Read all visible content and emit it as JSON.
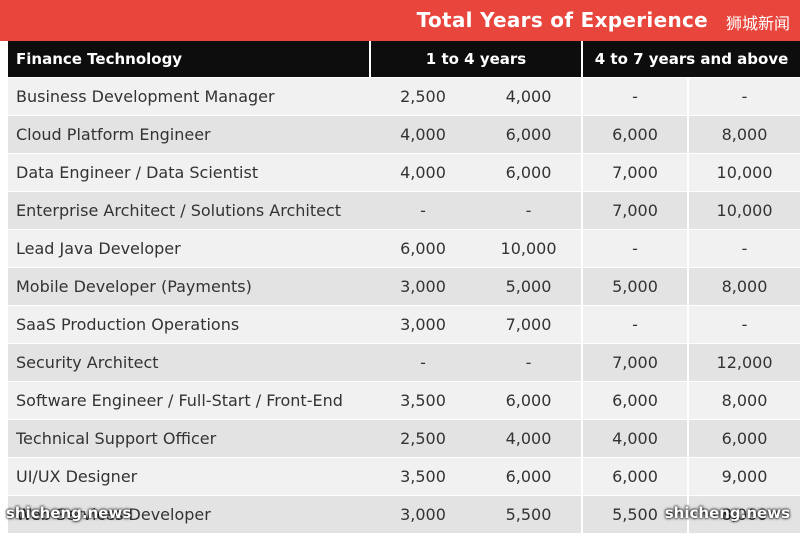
{
  "banner": {
    "title": "Total Years of Experience",
    "chinese_label": "狮城新闻"
  },
  "table": {
    "headers": [
      "Finance Technology",
      "1 to 4 years",
      "4 to 7 years and above"
    ],
    "rows": [
      [
        "Business Development Manager",
        "2,500",
        "4,000",
        "-",
        "-"
      ],
      [
        "Cloud Platform Engineer",
        "4,000",
        "6,000",
        "6,000",
        "8,000"
      ],
      [
        "Data Engineer / Data Scientist",
        "4,000",
        "6,000",
        "7,000",
        "10,000"
      ],
      [
        "Enterprise Architect / Solutions Architect",
        "-",
        "-",
        "7,000",
        "10,000"
      ],
      [
        "Lead Java Developer",
        "6,000",
        "10,000",
        "-",
        "-"
      ],
      [
        "Mobile Developer (Payments)",
        "3,000",
        "5,000",
        "5,000",
        "8,000"
      ],
      [
        "SaaS Production Operations",
        "3,000",
        "7,000",
        "-",
        "-"
      ],
      [
        "Security Architect",
        "-",
        "-",
        "7,000",
        "12,000"
      ],
      [
        "Software Engineer / Full-Start / Front-End",
        "3,500",
        "6,000",
        "6,000",
        "8,000"
      ],
      [
        "Technical Support Officer",
        "2,500",
        "4,000",
        "4,000",
        "6,000"
      ],
      [
        "UI/UX Designer",
        "3,500",
        "6,000",
        "6,000",
        "9,000"
      ],
      [
        "Web Services Developer",
        "3,000",
        "5,500",
        "5,500",
        "8,000"
      ]
    ]
  },
  "watermarks": {
    "left": "shicheng.news",
    "right": "shicheng.news"
  },
  "colors": {
    "banner": "#e8453c",
    "header": "#0d0d0d",
    "row_light": "#f1f1f1",
    "row_dark": "#e3e3e3"
  }
}
